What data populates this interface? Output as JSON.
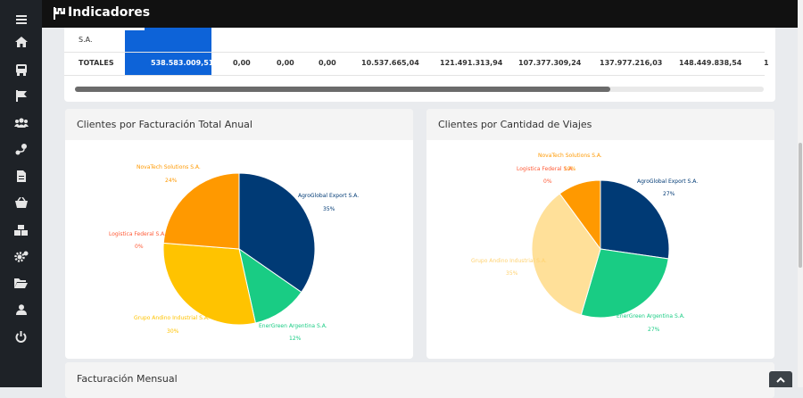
{
  "header": {
    "title": "Indicadores"
  },
  "table": {
    "partial_row_label": "S.A.",
    "totals_label": "TOTALES",
    "totals": [
      "538.583.009,51",
      "0,00",
      "0,00",
      "0,00",
      "10.537.665,04",
      "121.491.313,94",
      "107.377.309,24",
      "137.977.216,03",
      "148.449.838,54",
      "1"
    ]
  },
  "chart_billing": {
    "title": "Clientes por Facturación Total Anual",
    "names": [
      "AgroGlobal Export S.A.",
      "EnerGreen Argentina S.A.",
      "Grupo Andino Industrial S.A.",
      "Logistica Federal S.A.",
      "NovaTech Solutions S.A."
    ],
    "pcts": [
      "35%",
      "12%",
      "30%",
      "0%",
      "24%"
    ]
  },
  "chart_trips": {
    "title": "Clientes por Cantidad de Viajes",
    "names": [
      "AgroGlobal Export S.A.",
      "EnerGreen Argentina S.A.",
      "Grupo Andino Industrial S.A.",
      "Logistica Federal S.A.",
      "NovaTech Solutions S.A."
    ],
    "pcts": [
      "27%",
      "27%",
      "35%",
      "0%",
      "10%"
    ]
  },
  "monthly": {
    "title": "Facturación Mensual"
  },
  "chart_data": [
    {
      "type": "pie",
      "title": "Clientes por Facturación Total Anual",
      "categories": [
        "AgroGlobal Export S.A.",
        "EnerGreen Argentina S.A.",
        "Grupo Andino Industrial S.A.",
        "Logistica Federal S.A.",
        "NovaTech Solutions S.A."
      ],
      "values": [
        35,
        12,
        30,
        0,
        24
      ],
      "colors": [
        "#003a75",
        "#19cc84",
        "#ffc300",
        "#ff5a36",
        "#ff9900"
      ]
    },
    {
      "type": "pie",
      "title": "Clientes por Cantidad de Viajes",
      "categories": [
        "AgroGlobal Export S.A.",
        "EnerGreen Argentina S.A.",
        "Grupo Andino Industrial S.A.",
        "Logistica Federal S.A.",
        "NovaTech Solutions S.A."
      ],
      "values": [
        27,
        27,
        35,
        0,
        10
      ],
      "colors": [
        "#003a75",
        "#19cc84",
        "#ffe099",
        "#ff5a36",
        "#ff9900"
      ]
    }
  ],
  "icons": [
    "menu-icon",
    "home-icon",
    "bus-icon",
    "flag-icon",
    "users-icon",
    "route-icon",
    "invoice-icon",
    "basket-icon",
    "boxes-icon",
    "cogs-icon",
    "folder-icon",
    "user-icon",
    "power-icon"
  ],
  "colors": {
    "sidebar": "#1e2227",
    "topbar": "#111111",
    "accent": "#0d63d8"
  }
}
